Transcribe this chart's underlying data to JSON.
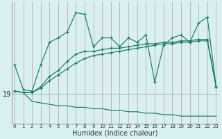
{
  "xlabel": "Humidex (Indice chaleur)",
  "x": [
    0,
    1,
    2,
    3,
    4,
    5,
    6,
    7,
    8,
    9,
    10,
    11,
    12,
    13,
    14,
    15,
    16,
    17,
    18,
    19,
    20,
    21,
    22,
    23
  ],
  "line1": [
    21.0,
    19.3,
    19.2,
    21.0,
    22.5,
    22.8,
    23.2,
    24.5,
    24.4,
    22.2,
    22.8,
    22.8,
    22.2,
    22.8,
    22.5,
    23.0,
    19.8,
    22.3,
    22.8,
    23.0,
    22.5,
    23.8,
    24.2,
    19.5
  ],
  "line2": [
    19.2,
    19.1,
    19.1,
    19.5,
    20.2,
    20.6,
    21.2,
    21.7,
    21.9,
    21.9,
    22.0,
    22.1,
    22.1,
    22.2,
    22.3,
    22.4,
    22.4,
    22.5,
    22.5,
    22.6,
    22.6,
    22.7,
    22.7,
    19.5
  ],
  "line3": [
    19.2,
    19.1,
    19.1,
    19.4,
    19.9,
    20.3,
    20.7,
    21.1,
    21.4,
    21.6,
    21.7,
    21.8,
    21.9,
    22.0,
    22.1,
    22.2,
    22.3,
    22.4,
    22.4,
    22.5,
    22.5,
    22.6,
    22.6,
    19.5
  ],
  "line4": [
    19.2,
    19.1,
    18.5,
    18.4,
    18.3,
    18.2,
    18.2,
    18.1,
    18.1,
    18.0,
    18.0,
    17.9,
    17.9,
    17.8,
    17.8,
    17.7,
    17.7,
    17.6,
    17.6,
    17.5,
    17.5,
    17.5,
    17.5,
    17.5
  ],
  "ytick_val": 19,
  "color": "#1a7a6a",
  "bg_color": "#d8f0f0",
  "vgrid_color": "#c8a8a8",
  "hgrid_color": "#a0b8b8",
  "ylim_min": 17.0,
  "ylim_max": 25.2
}
